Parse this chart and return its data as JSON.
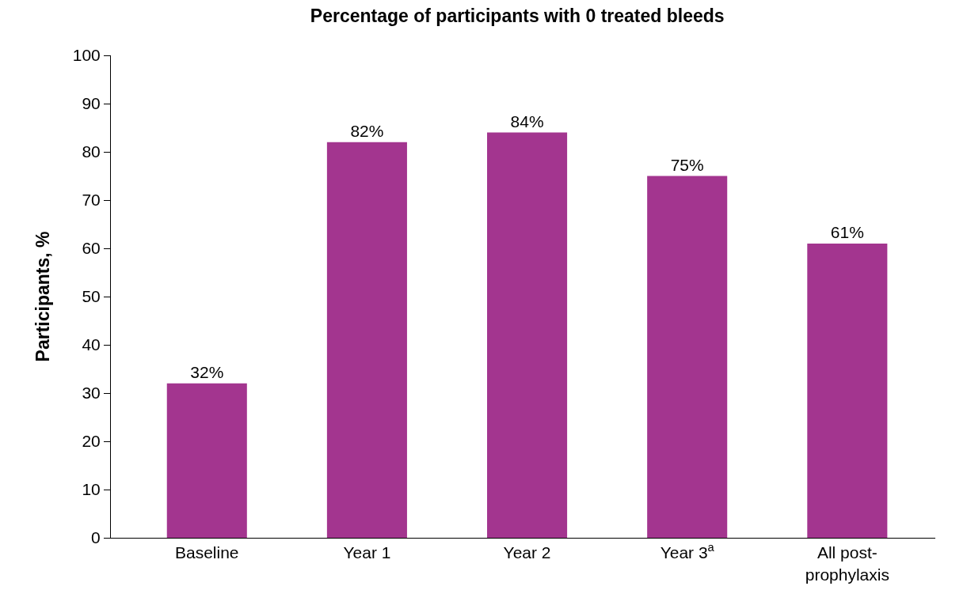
{
  "chart_data": {
    "type": "bar",
    "title": "Percentage of participants with 0 treated bleeds",
    "ylabel": "Participants, %",
    "categories": [
      "Baseline",
      "Year 1",
      "Year 2",
      "Year 3$^{a}$",
      "All post-prophylaxis"
    ],
    "values": [
      32,
      82,
      84,
      75,
      61
    ],
    "value_labels": [
      "32%",
      "82%",
      "84%",
      "75%",
      "61%"
    ],
    "color": "#a3358f",
    "ylim": [
      0,
      100
    ],
    "yticks": [
      0,
      10,
      20,
      30,
      40,
      50,
      60,
      70,
      80,
      90,
      100
    ],
    "grid": false
  }
}
